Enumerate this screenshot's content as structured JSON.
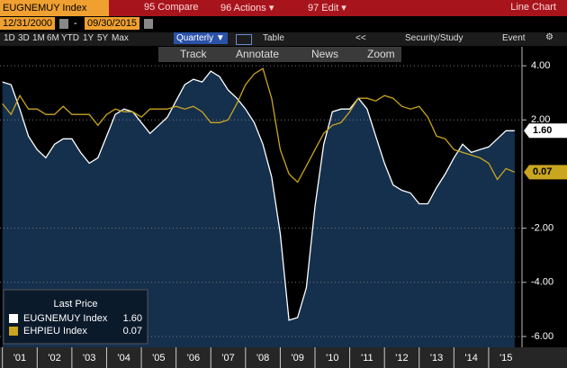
{
  "toolbar": {
    "ticker": "EUGNEMUY Index",
    "menu": [
      "95 Compare",
      "96 Actions ▾",
      "97 Edit ▾"
    ],
    "view": "Line Chart",
    "start_date": "12/31/2000",
    "end_date": "09/30/2015",
    "ranges": [
      "1D",
      "3D",
      "1M",
      "6M",
      "YTD",
      "1Y",
      "5Y",
      "Max"
    ],
    "period": "Quarterly ▼",
    "table": "Table",
    "back": "<<",
    "study": "Security/Study",
    "event": "Event",
    "tools": [
      "Track",
      "Annotate",
      "News",
      "Zoom"
    ]
  },
  "chart_data": {
    "type": "line",
    "x": [
      2001.0,
      2001.25,
      2001.5,
      2001.75,
      2002.0,
      2002.25,
      2002.5,
      2002.75,
      2003.0,
      2003.25,
      2003.5,
      2003.75,
      2004.0,
      2004.25,
      2004.5,
      2004.75,
      2005.0,
      2005.25,
      2005.5,
      2005.75,
      2006.0,
      2006.25,
      2006.5,
      2006.75,
      2007.0,
      2007.25,
      2007.5,
      2007.75,
      2008.0,
      2008.25,
      2008.5,
      2008.75,
      2009.0,
      2009.25,
      2009.5,
      2009.75,
      2010.0,
      2010.25,
      2010.5,
      2010.75,
      2011.0,
      2011.25,
      2011.5,
      2011.75,
      2012.0,
      2012.25,
      2012.5,
      2012.75,
      2013.0,
      2013.25,
      2013.5,
      2013.75,
      2014.0,
      2014.25,
      2014.5,
      2014.75,
      2015.0,
      2015.25,
      2015.5,
      2015.75
    ],
    "series": [
      {
        "name": "EUGNEMUY Index",
        "color": "#ffffff",
        "fill": "#15304d",
        "last_label": "1.60",
        "values": [
          3.4,
          3.3,
          2.4,
          1.4,
          0.9,
          0.6,
          1.1,
          1.3,
          1.3,
          0.8,
          0.4,
          0.6,
          1.4,
          2.2,
          2.4,
          2.3,
          1.9,
          1.5,
          1.8,
          2.1,
          2.7,
          3.3,
          3.5,
          3.4,
          3.8,
          3.6,
          3.1,
          2.8,
          2.4,
          1.9,
          1.1,
          -0.1,
          -2.2,
          -5.4,
          -5.3,
          -4.2,
          -1.2,
          1.1,
          2.3,
          2.4,
          2.4,
          2.8,
          2.4,
          1.4,
          0.4,
          -0.4,
          -0.6,
          -0.7,
          -1.1,
          -1.1,
          -0.5,
          0.0,
          0.6,
          1.1,
          0.8,
          0.9,
          1.0,
          1.3,
          1.6,
          1.6
        ]
      },
      {
        "name": "EHPIEU Index",
        "color": "#c9a520",
        "last_label": "0.07",
        "values": [
          2.6,
          2.2,
          2.9,
          2.4,
          2.4,
          2.2,
          2.2,
          2.5,
          2.2,
          2.2,
          2.2,
          1.8,
          2.2,
          2.4,
          2.3,
          2.3,
          2.1,
          2.4,
          2.4,
          2.4,
          2.5,
          2.4,
          2.5,
          2.3,
          1.9,
          1.9,
          2.0,
          2.6,
          3.3,
          3.7,
          3.9,
          2.8,
          0.9,
          0.0,
          -0.3,
          0.3,
          0.9,
          1.5,
          1.8,
          1.9,
          2.3,
          2.8,
          2.8,
          2.7,
          2.9,
          2.8,
          2.5,
          2.4,
          2.5,
          2.1,
          1.4,
          1.3,
          0.9,
          0.8,
          0.7,
          0.6,
          0.4,
          -0.2,
          0.2,
          0.07
        ]
      }
    ],
    "legend_title": "Last Price",
    "xlim": [
      2000.93,
      2015.96
    ],
    "xticks": [
      {
        "value": 2001.5,
        "label": "'01"
      },
      {
        "value": 2002.5,
        "label": "'02"
      },
      {
        "value": 2003.5,
        "label": "'03"
      },
      {
        "value": 2004.5,
        "label": "'04"
      },
      {
        "value": 2005.5,
        "label": "'05"
      },
      {
        "value": 2006.5,
        "label": "'06"
      },
      {
        "value": 2007.5,
        "label": "'07"
      },
      {
        "value": 2008.5,
        "label": "'08"
      },
      {
        "value": 2009.5,
        "label": "'09"
      },
      {
        "value": 2010.5,
        "label": "'10"
      },
      {
        "value": 2011.5,
        "label": "'11"
      },
      {
        "value": 2012.5,
        "label": "'12"
      },
      {
        "value": 2013.5,
        "label": "'13"
      },
      {
        "value": 2014.5,
        "label": "'14"
      },
      {
        "value": 2015.5,
        "label": "'15"
      }
    ],
    "ylim": [
      -6.4,
      4.7
    ],
    "yticks": [
      {
        "value": 4,
        "label": "4.00"
      },
      {
        "value": 2,
        "label": "2.00"
      },
      {
        "value": -2,
        "label": "-2.00"
      },
      {
        "value": -4,
        "label": "-4.00"
      },
      {
        "value": -6,
        "label": "-6.00"
      }
    ],
    "grid": true
  }
}
